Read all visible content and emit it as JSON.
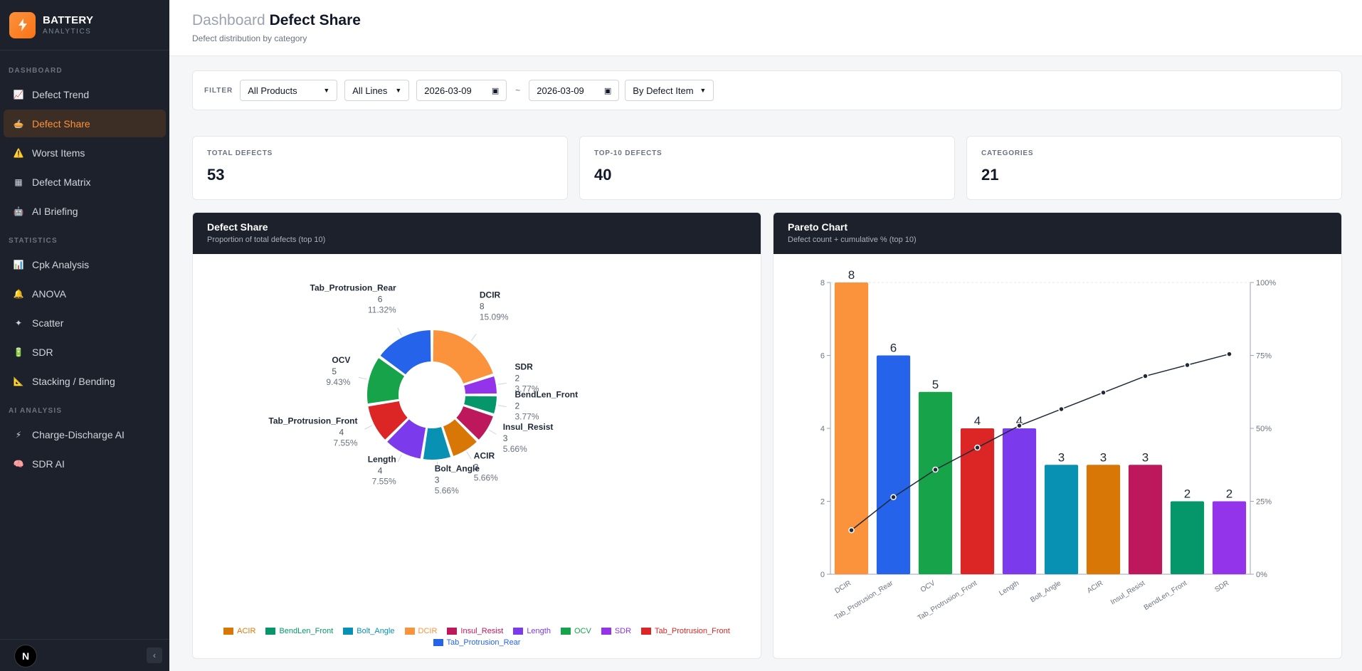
{
  "brand": {
    "title": "BATTERY",
    "subtitle": "ANALYTICS",
    "logo_icon": "battery-bolt-icon"
  },
  "sidebar": {
    "sections": [
      {
        "title": "DASHBOARD",
        "items": [
          {
            "label": "Defect Trend",
            "icon": "📈",
            "active": false
          },
          {
            "label": "Defect Share",
            "icon": "🥧",
            "active": true
          },
          {
            "label": "Worst Items",
            "icon": "⚠️",
            "active": false
          },
          {
            "label": "Defect Matrix",
            "icon": "▦",
            "active": false
          },
          {
            "label": "AI Briefing",
            "icon": "🤖",
            "active": false
          }
        ]
      },
      {
        "title": "STATISTICS",
        "items": [
          {
            "label": "Cpk Analysis",
            "icon": "📊",
            "active": false
          },
          {
            "label": "ANOVA",
            "icon": "🔔",
            "active": false
          },
          {
            "label": "Scatter",
            "icon": "✦",
            "active": false
          },
          {
            "label": "SDR",
            "icon": "🔋",
            "active": false
          },
          {
            "label": "Stacking / Bending",
            "icon": "📐",
            "active": false
          }
        ]
      },
      {
        "title": "AI ANALYSIS",
        "items": [
          {
            "label": "Charge-Discharge AI",
            "icon": "⚡",
            "active": false
          },
          {
            "label": "SDR AI",
            "icon": "🧠",
            "active": false
          }
        ]
      }
    ],
    "footer": {
      "avatar": "N",
      "collapse": "‹"
    }
  },
  "header": {
    "crumb": "Dashboard",
    "title": "Defect Share",
    "subtitle": "Defect distribution by category"
  },
  "filter": {
    "label": "FILTER",
    "product": "All Products",
    "line": "All Lines",
    "date_from": "2026-03-09",
    "separator": "~",
    "date_to": "2026-03-09",
    "group_by": "By Defect Item"
  },
  "kpis": [
    {
      "label": "TOTAL DEFECTS",
      "value": "53"
    },
    {
      "label": "TOP-10 DEFECTS",
      "value": "40"
    },
    {
      "label": "CATEGORIES",
      "value": "21"
    }
  ],
  "donut_panel": {
    "title": "Defect Share",
    "subtitle": "Proportion of total defects (top 10)"
  },
  "pareto_panel": {
    "title": "Pareto Chart",
    "subtitle": "Defect count + cumulative % (top 10)"
  },
  "colors": {
    "DCIR": "#fb923c",
    "Tab_Protrusion_Rear": "#2563eb",
    "OCV": "#16a34a",
    "Tab_Protrusion_Front": "#dc2626",
    "Length": "#7c3aed",
    "Bolt_Angle": "#0891b2",
    "ACIR": "#d97706",
    "Insul_Resist": "#be185d",
    "BendLen_Front": "#059669",
    "SDR": "#9333ea"
  },
  "chart_data": [
    {
      "type": "pie",
      "title": "Defect Share",
      "slices": [
        {
          "label": "DCIR",
          "value": 8,
          "pct": "15.09%"
        },
        {
          "label": "SDR",
          "value": 2,
          "pct": "3.77%"
        },
        {
          "label": "BendLen_Front",
          "value": 2,
          "pct": "3.77%"
        },
        {
          "label": "Insul_Resist",
          "value": 3,
          "pct": "5.66%"
        },
        {
          "label": "ACIR",
          "value": 3,
          "pct": "5.66%"
        },
        {
          "label": "Bolt_Angle",
          "value": 3,
          "pct": "5.66%"
        },
        {
          "label": "Length",
          "value": 4,
          "pct": "7.55%"
        },
        {
          "label": "Tab_Protrusion_Front",
          "value": 4,
          "pct": "7.55%"
        },
        {
          "label": "OCV",
          "value": 5,
          "pct": "9.43%"
        },
        {
          "label": "Tab_Protrusion_Rear",
          "value": 6,
          "pct": "11.32%"
        }
      ],
      "total": 53,
      "legend": [
        "ACIR",
        "BendLen_Front",
        "Bolt_Angle",
        "DCIR",
        "Insul_Resist",
        "Length",
        "OCV",
        "SDR",
        "Tab_Protrusion_Front",
        "Tab_Protrusion_Rear"
      ],
      "legend_position": "bottom"
    },
    {
      "type": "bar",
      "title": "Pareto Chart",
      "categories": [
        "DCIR",
        "Tab_Protrusion_Rear",
        "OCV",
        "Tab_Protrusion_Front",
        "Length",
        "Bolt_Angle",
        "ACIR",
        "Insul_Resist",
        "BendLen_Front",
        "SDR"
      ],
      "values": [
        8,
        6,
        5,
        4,
        4,
        3,
        3,
        3,
        2,
        2
      ],
      "cumulative_pct": [
        15.09,
        26.42,
        35.85,
        43.4,
        50.94,
        56.6,
        62.26,
        67.92,
        71.7,
        75.47
      ],
      "ylim": [
        0,
        8
      ],
      "yticks": [
        "0",
        "2",
        "4",
        "6",
        "8"
      ],
      "y2lim": [
        0,
        100
      ],
      "y2ticks": [
        "0%",
        "25%",
        "50%",
        "75%",
        "100%"
      ]
    }
  ]
}
